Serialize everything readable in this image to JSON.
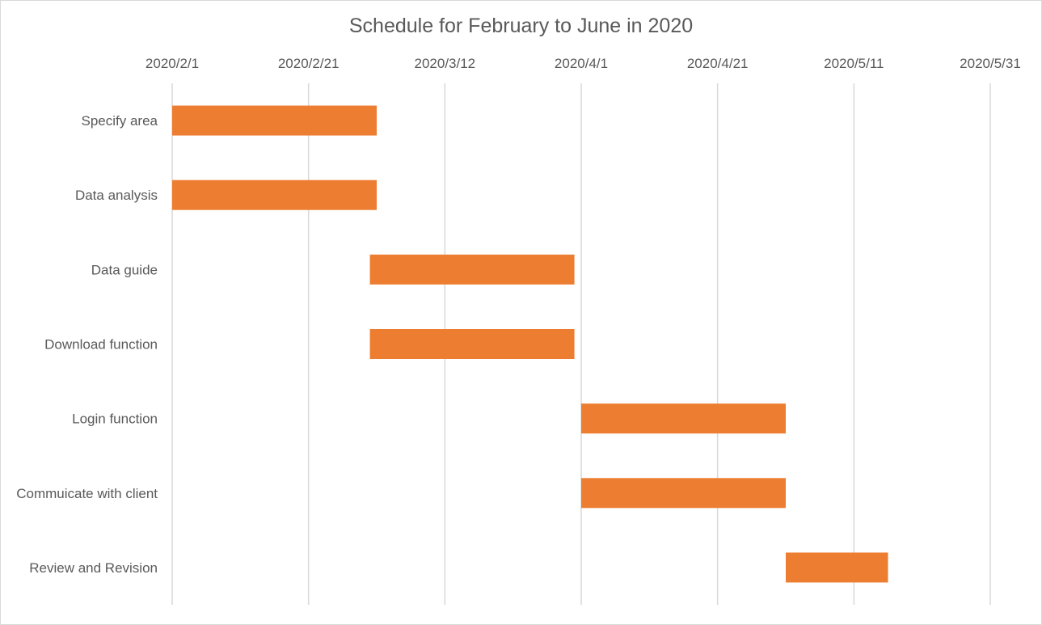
{
  "chart_data": {
    "type": "bar",
    "orientation": "horizontal-gantt",
    "title": "Schedule for February to June in 2020",
    "xlabel": "",
    "ylabel": "",
    "x_axis_position": "top",
    "x_ticks": [
      "2020/2/1",
      "2020/2/21",
      "2020/3/12",
      "2020/4/1",
      "2020/4/21",
      "2020/5/11",
      "2020/5/31"
    ],
    "xlim": [
      "2020/2/1",
      "2020/5/31"
    ],
    "grid": "vertical",
    "legend": "none",
    "bar_color": "#ED7D31",
    "categories": [
      "Specify area",
      "Data analysis",
      "Data guide",
      "Download function",
      "Login function",
      "Commuicate with client",
      "Review and Revision"
    ],
    "tasks": [
      {
        "name": "Specify area",
        "start": "2020/2/1",
        "end": "2020/3/2"
      },
      {
        "name": "Data analysis",
        "start": "2020/2/1",
        "end": "2020/3/2"
      },
      {
        "name": "Data guide",
        "start": "2020/3/1",
        "end": "2020/3/31"
      },
      {
        "name": "Download function",
        "start": "2020/3/1",
        "end": "2020/3/31"
      },
      {
        "name": "Login function",
        "start": "2020/4/1",
        "end": "2020/5/1"
      },
      {
        "name": "Commuicate with client",
        "start": "2020/4/1",
        "end": "2020/5/1"
      },
      {
        "name": "Review and Revision",
        "start": "2020/5/1",
        "end": "2020/5/16"
      }
    ]
  }
}
